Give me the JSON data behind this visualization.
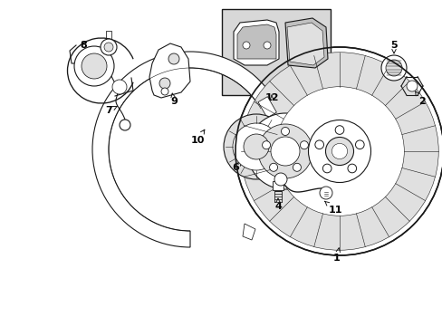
{
  "bg_color": "#ffffff",
  "line_color": "#1a1a1a",
  "fig_width": 4.89,
  "fig_height": 3.6,
  "dpi": 100,
  "gray_box": "#d8d8d8",
  "gray_part": "#c0c0c0",
  "gray_light": "#e0e0e0"
}
